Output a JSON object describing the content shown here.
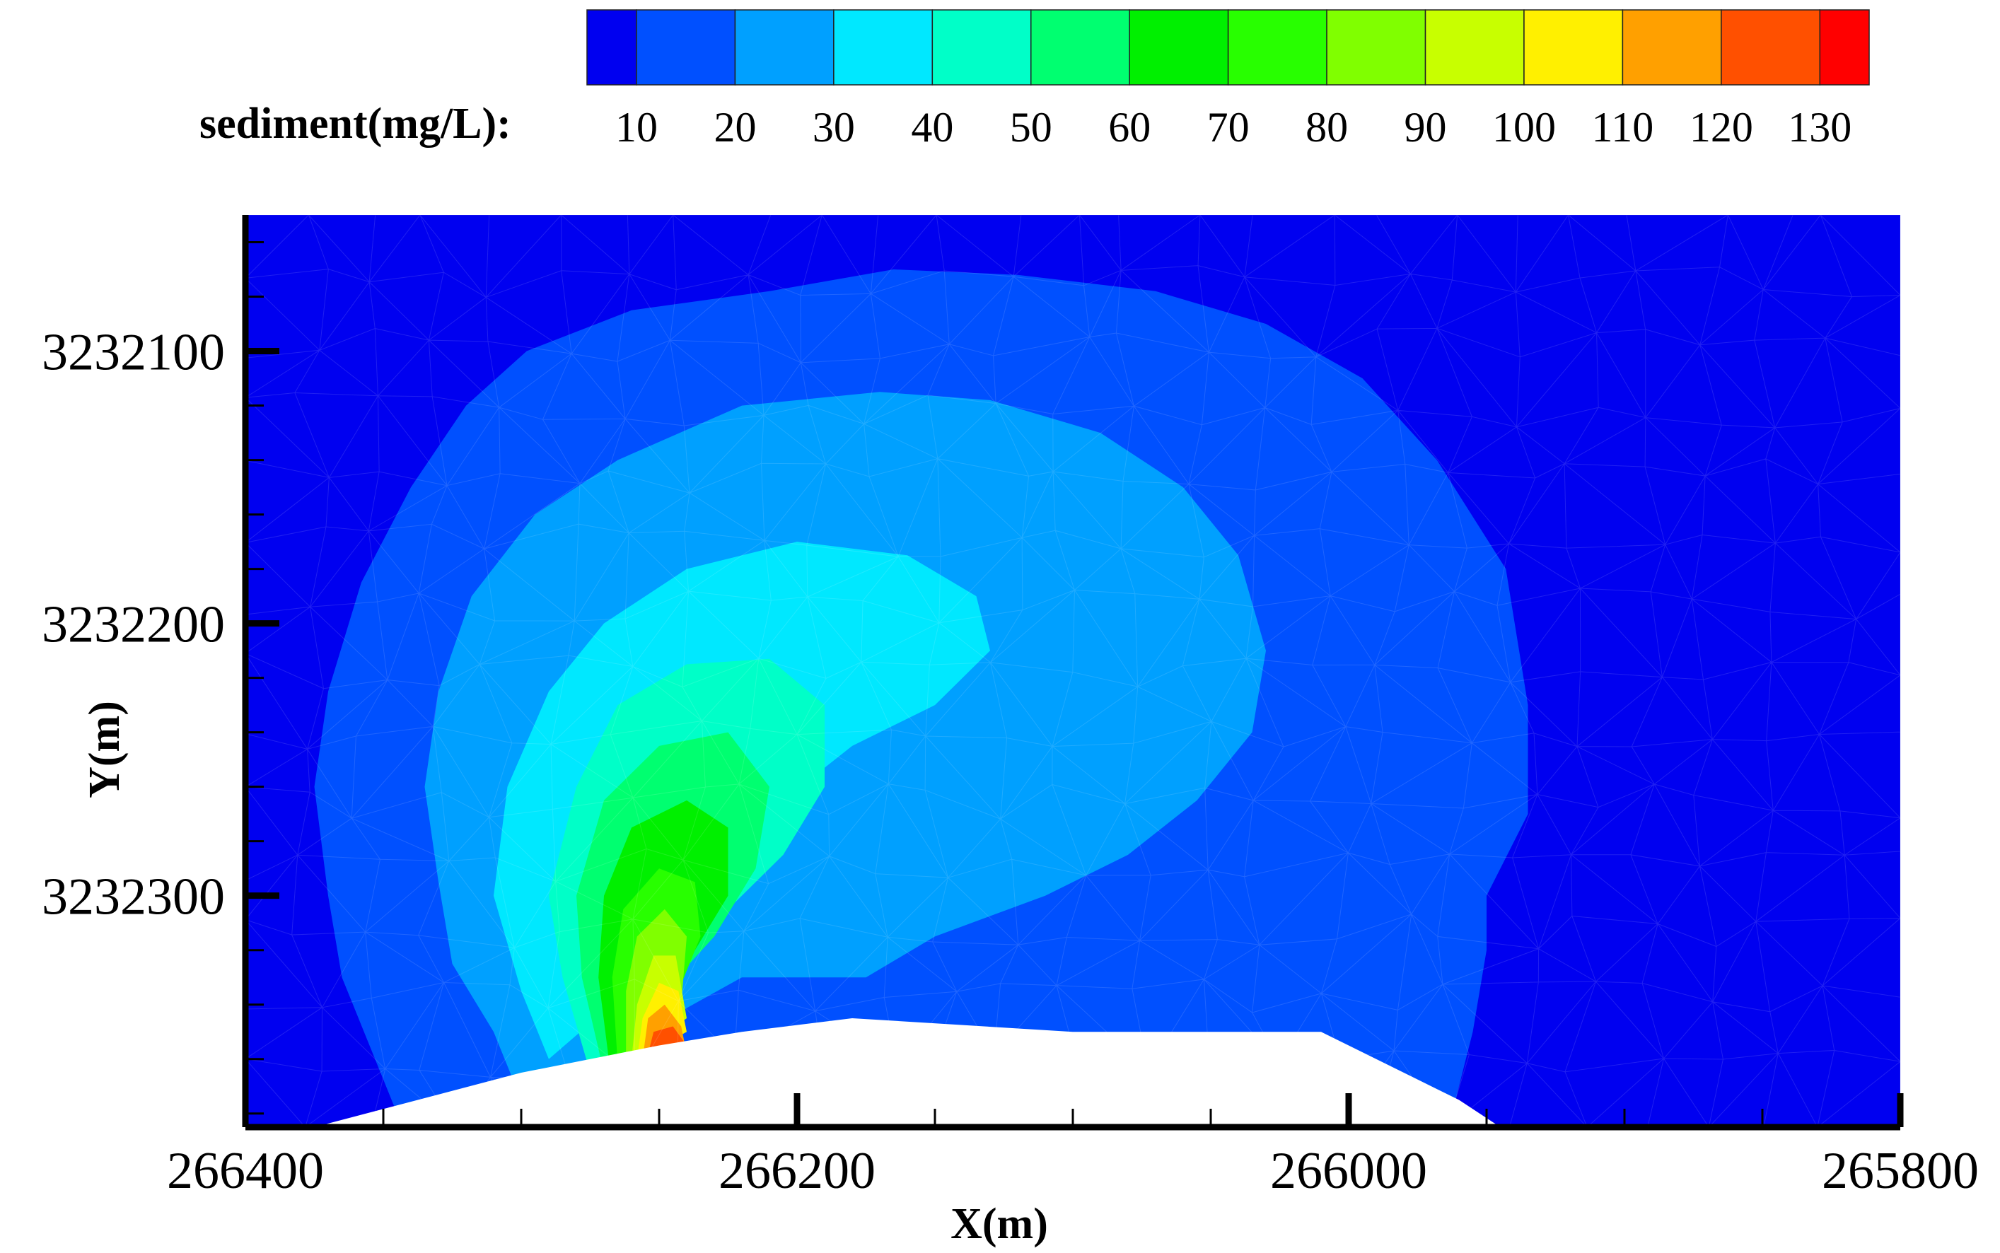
{
  "chart_data": {
    "type": "contour",
    "colorbar": {
      "label": "sediment(mg/L):",
      "levels": [
        10,
        20,
        30,
        40,
        50,
        60,
        70,
        80,
        90,
        100,
        110,
        120,
        130
      ],
      "colors": [
        "#0000f0",
        "#0050ff",
        "#00a0ff",
        "#00e8ff",
        "#00ffc8",
        "#00ff70",
        "#00f000",
        "#28ff00",
        "#80ff00",
        "#c8ff00",
        "#fff000",
        "#ffa000",
        "#ff5000",
        "#ff0000"
      ]
    },
    "xlabel": "X(m)",
    "ylabel": "Y(m)",
    "x_range": [
      266400,
      265800
    ],
    "y_range": [
      3232385,
      3232050
    ],
    "x_ticks": [
      266400,
      266200,
      266000,
      265800
    ],
    "y_ticks": [
      3232100,
      3232200,
      3232300
    ],
    "x_tick_labels": [
      "266400",
      "266200",
      "266000",
      "265800"
    ],
    "y_tick_labels": [
      "3232100",
      "3232200",
      "3232300"
    ],
    "plume": {
      "source": {
        "x": 266250,
        "y": 3232330
      },
      "peak_value": 130
    },
    "contours": [
      {
        "level": 10,
        "points": [
          [
            266345,
            3232380
          ],
          [
            266355,
            3232355
          ],
          [
            266365,
            3232330
          ],
          [
            266370,
            3232300
          ],
          [
            266375,
            3232260
          ],
          [
            266370,
            3232225
          ],
          [
            266358,
            3232185
          ],
          [
            266340,
            3232150
          ],
          [
            266320,
            3232120
          ],
          [
            266298,
            3232100
          ],
          [
            266260,
            3232085
          ],
          [
            266210,
            3232078
          ],
          [
            266165,
            3232070
          ],
          [
            266120,
            3232072
          ],
          [
            266070,
            3232078
          ],
          [
            266030,
            3232090
          ],
          [
            265995,
            3232110
          ],
          [
            265968,
            3232140
          ],
          [
            265943,
            3232180
          ],
          [
            265935,
            3232230
          ],
          [
            265935,
            3232270
          ],
          [
            265950,
            3232300
          ],
          [
            265950,
            3232320
          ],
          [
            265955,
            3232350
          ],
          [
            265965,
            3232390
          ]
        ]
      },
      {
        "level": 20,
        "points": [
          [
            266300,
            3232375
          ],
          [
            266310,
            3232350
          ],
          [
            266325,
            3232325
          ],
          [
            266330,
            3232295
          ],
          [
            266335,
            3232260
          ],
          [
            266330,
            3232225
          ],
          [
            266318,
            3232190
          ],
          [
            266295,
            3232160
          ],
          [
            266265,
            3232140
          ],
          [
            266220,
            3232120
          ],
          [
            266170,
            3232115
          ],
          [
            266130,
            3232118
          ],
          [
            266090,
            3232130
          ],
          [
            266060,
            3232150
          ],
          [
            266040,
            3232175
          ],
          [
            266030,
            3232210
          ],
          [
            266035,
            3232240
          ],
          [
            266055,
            3232265
          ],
          [
            266080,
            3232285
          ],
          [
            266110,
            3232300
          ],
          [
            266150,
            3232315
          ],
          [
            266175,
            3232330
          ],
          [
            266220,
            3232330
          ]
        ]
      },
      {
        "level": 30,
        "points": [
          [
            266290,
            3232360
          ],
          [
            266300,
            3232335
          ],
          [
            266310,
            3232300
          ],
          [
            266305,
            3232260
          ],
          [
            266290,
            3232225
          ],
          [
            266270,
            3232200
          ],
          [
            266240,
            3232180
          ],
          [
            266200,
            3232170
          ],
          [
            266160,
            3232175
          ],
          [
            266135,
            3232190
          ],
          [
            266130,
            3232210
          ],
          [
            266150,
            3232230
          ],
          [
            266180,
            3232245
          ],
          [
            266205,
            3232265
          ],
          [
            266225,
            3232285
          ],
          [
            266240,
            3232305
          ],
          [
            266250,
            3232325
          ]
        ]
      },
      {
        "level": 40,
        "points": [
          [
            266275,
            3232365
          ],
          [
            266285,
            3232330
          ],
          [
            266290,
            3232300
          ],
          [
            266280,
            3232260
          ],
          [
            266265,
            3232230
          ],
          [
            266240,
            3232215
          ],
          [
            266210,
            3232213
          ],
          [
            266190,
            3232230
          ],
          [
            266190,
            3232260
          ],
          [
            266205,
            3232285
          ],
          [
            266230,
            3232310
          ],
          [
            266250,
            3232330
          ]
        ]
      },
      {
        "level": 50,
        "points": [
          [
            266270,
            3232365
          ],
          [
            266278,
            3232330
          ],
          [
            266280,
            3232300
          ],
          [
            266270,
            3232265
          ],
          [
            266250,
            3232245
          ],
          [
            266225,
            3232240
          ],
          [
            266210,
            3232260
          ],
          [
            266215,
            3232290
          ],
          [
            266230,
            3232315
          ],
          [
            266248,
            3232335
          ]
        ]
      },
      {
        "level": 60,
        "points": [
          [
            266268,
            3232362
          ],
          [
            266272,
            3232330
          ],
          [
            266270,
            3232300
          ],
          [
            266260,
            3232275
          ],
          [
            266240,
            3232265
          ],
          [
            266225,
            3232275
          ],
          [
            266225,
            3232300
          ],
          [
            266240,
            3232325
          ],
          [
            266250,
            3232340
          ]
        ]
      },
      {
        "level": 70,
        "points": [
          [
            266265,
            3232362
          ],
          [
            266267,
            3232330
          ],
          [
            266263,
            3232305
          ],
          [
            266250,
            3232290
          ],
          [
            266237,
            3232295
          ],
          [
            266235,
            3232315
          ],
          [
            266245,
            3232340
          ]
        ]
      },
      {
        "level": 80,
        "points": [
          [
            266262,
            3232360
          ],
          [
            266262,
            3232335
          ],
          [
            266258,
            3232315
          ],
          [
            266248,
            3232305
          ],
          [
            266240,
            3232315
          ],
          [
            266242,
            3232340
          ]
        ]
      },
      {
        "level": 90,
        "points": [
          [
            266260,
            3232360
          ],
          [
            266258,
            3232340
          ],
          [
            266252,
            3232322
          ],
          [
            266244,
            3232322
          ],
          [
            266240,
            3232345
          ]
        ]
      },
      {
        "level": 100,
        "points": [
          [
            266258,
            3232360
          ],
          [
            266256,
            3232345
          ],
          [
            266250,
            3232332
          ],
          [
            266243,
            3232335
          ],
          [
            266240,
            3232350
          ]
        ]
      },
      {
        "level": 110,
        "points": [
          [
            266256,
            3232360
          ],
          [
            266254,
            3232345
          ],
          [
            266248,
            3232340
          ],
          [
            266242,
            3232348
          ],
          [
            266240,
            3232358
          ]
        ]
      },
      {
        "level": 120,
        "points": [
          [
            266255,
            3232362
          ],
          [
            266252,
            3232350
          ],
          [
            266245,
            3232348
          ],
          [
            266240,
            3232355
          ]
        ]
      }
    ],
    "land": [
      [
        266375,
        3232385
      ],
      [
        266300,
        3232365
      ],
      [
        266250,
        3232355
      ],
      [
        266220,
        3232350
      ],
      [
        266180,
        3232345
      ],
      [
        266100,
        3232350
      ],
      [
        266010,
        3232350
      ],
      [
        265980,
        3232365
      ],
      [
        265960,
        3232375
      ],
      [
        265945,
        3232385
      ]
    ]
  }
}
